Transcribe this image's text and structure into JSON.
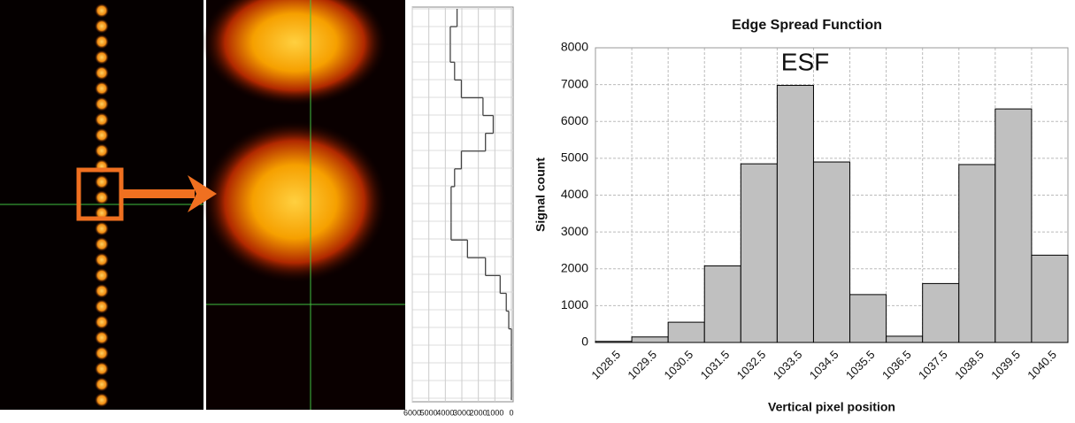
{
  "chart_data": [
    {
      "type": "step-profile",
      "values": [
        3290,
        3700,
        3700,
        3440,
        3030,
        1720,
        1100,
        1570,
        3030,
        3440,
        3650,
        3650,
        3650,
        2660,
        1570,
        680,
        310,
        160,
        0,
        0,
        0,
        0
      ],
      "xlim": [
        6000,
        0
      ],
      "xticks": [
        6000,
        5000,
        4000,
        3000,
        2000,
        1000,
        0
      ],
      "grid": true,
      "color": "#444444"
    },
    {
      "type": "bar",
      "title": "Edge Spread Function",
      "annotation": "ESF",
      "x_label": "Vertical pixel position",
      "y_label": "Signal count",
      "categories": [
        "1028.5",
        "1029.5",
        "1030.5",
        "1031.5",
        "1032.5",
        "1033.5",
        "1034.5",
        "1035.5",
        "1036.5",
        "1037.5",
        "1038.5",
        "1039.5",
        "1040.5"
      ],
      "values": [
        30,
        150,
        550,
        2080,
        4850,
        6980,
        4900,
        1300,
        170,
        1600,
        4830,
        6340,
        2370
      ],
      "color": "#c0c0c0",
      "ylim": [
        0,
        8000
      ],
      "yticks": [
        0,
        1000,
        2000,
        3000,
        4000,
        5000,
        6000,
        7000,
        8000
      ],
      "grid": true
    }
  ]
}
